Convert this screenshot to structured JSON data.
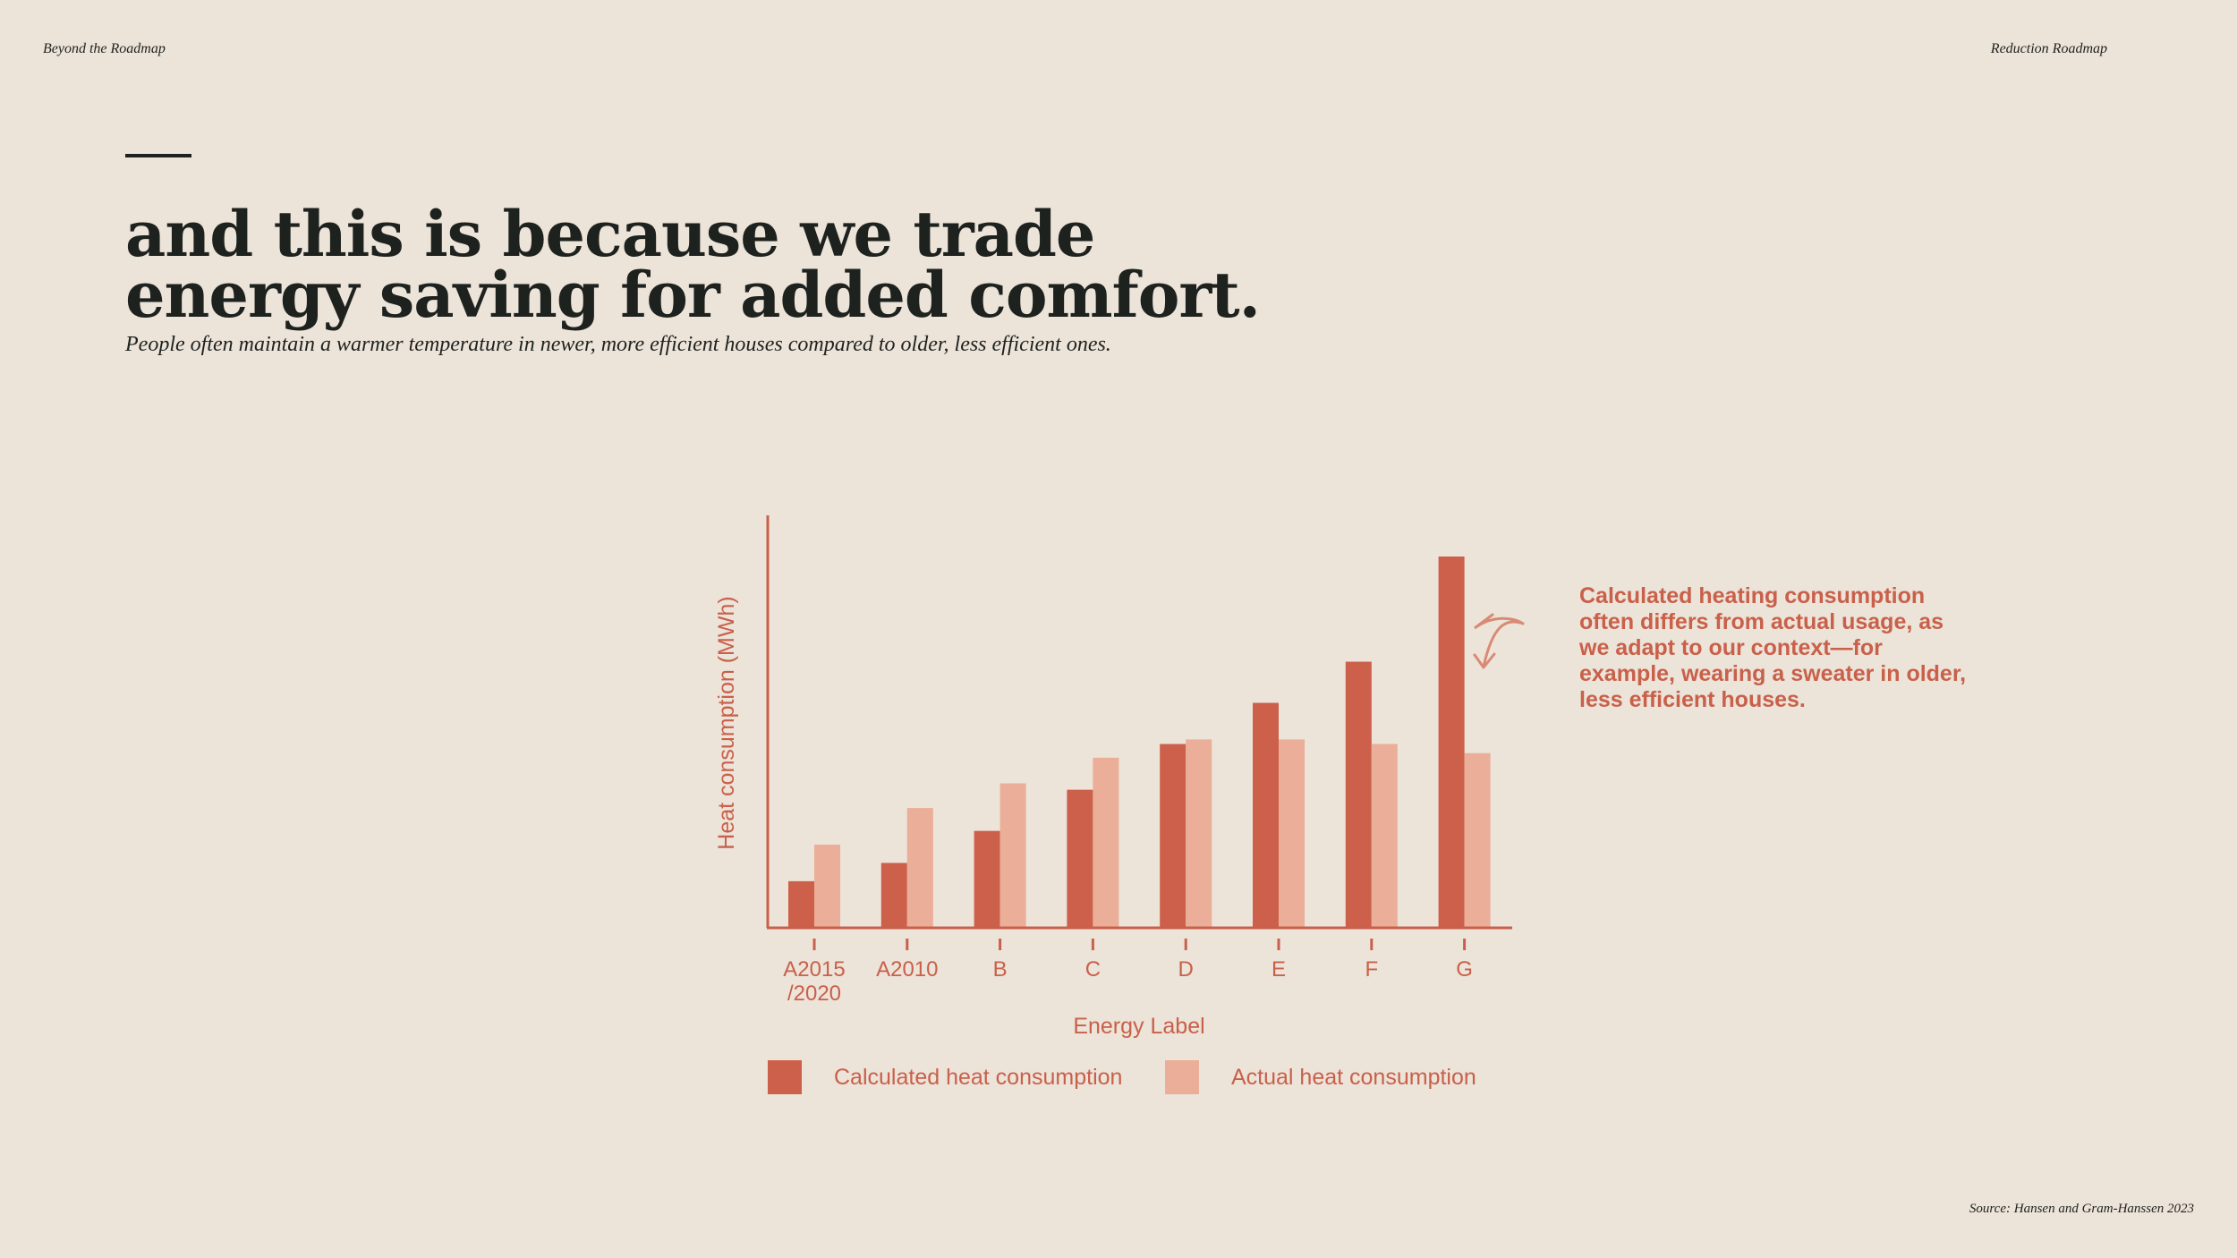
{
  "header": {
    "left": "Beyond the Roadmap",
    "right": "Reduction Roadmap"
  },
  "headline": "and this is because we trade energy saving for added comfort.",
  "subtitle": "People often maintain a warmer temperature in newer, more efficient houses compared to older, less efficient ones.",
  "annotation": "Calculated heating consumption often differs from actual usage, as we adapt to our context—for example, wearing a sweater in older, less efficient houses.",
  "source": "Source: Hansen and Gram-Hanssen 2023",
  "colors": {
    "calculated": "#cc604a",
    "actual": "#ebae98",
    "accent": "#c9604a",
    "text": "#1e221e",
    "background": "#ece3d9"
  },
  "chart_data": {
    "type": "bar",
    "xlabel": "Energy Label",
    "ylabel": "Heat consumption (MWh)",
    "categories": [
      [
        "A2015",
        "/2020"
      ],
      [
        "A2010"
      ],
      [
        "B"
      ],
      [
        "C"
      ],
      [
        "D"
      ],
      [
        "E"
      ],
      [
        "F"
      ],
      [
        "G"
      ]
    ],
    "series": [
      {
        "name": "Calculated heat consumption",
        "color": "#cc604a",
        "values": [
          5,
          7,
          10.5,
          15,
          20,
          24.5,
          29,
          40.5
        ]
      },
      {
        "name": "Actual heat consumption",
        "color": "#ebae98",
        "values": [
          9,
          13,
          15.7,
          18.5,
          20.5,
          20.5,
          20,
          19
        ]
      }
    ],
    "ylim": [
      0,
      45
    ],
    "grid": false,
    "legend": "bottom"
  }
}
